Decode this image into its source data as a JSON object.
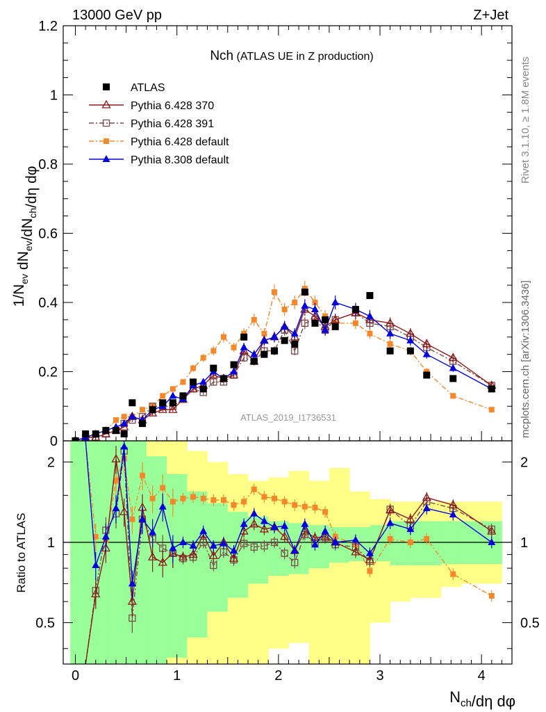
{
  "header": {
    "left": "13000 GeV pp",
    "right": "Z+Jet"
  },
  "main_title": {
    "main": "Nch",
    "sub": " (ATLAS UE in Z production)"
  },
  "side_text": {
    "top": "Rivet 3.1.10, ≥ 1.8M events",
    "bottom": "mcplots.cern.ch [arXiv:1306.3436]"
  },
  "watermark": "ATLAS_2019_I1736531",
  "ylabel_top": "1/N_ev dN_ev/dN_ch/dη dφ",
  "ylabel_bottom": "Ratio to ATLAS",
  "xlabel": "N_ch/dη dφ",
  "colors": {
    "atlas": "#000000",
    "p370": "#8b1a1a",
    "p391": "#7a4a4a",
    "p6def": "#f4882a",
    "p8def": "#0000dd",
    "band_inner": "#99ff99",
    "band_outer": "#ffff88"
  },
  "chart_data": [
    {
      "type": "line",
      "panel": "main",
      "xlim": [
        -0.12,
        4.3
      ],
      "ylim": [
        0,
        1.2
      ],
      "yticks": [
        0,
        0.2,
        0.4,
        0.6,
        0.8,
        1,
        1.2
      ],
      "ytick_labels": [
        "0",
        "0.2",
        "0.4",
        "0.6",
        "0.8",
        "1",
        "1.2"
      ],
      "legend": "top-left",
      "x": [
        0,
        0.1,
        0.2,
        0.3,
        0.4,
        0.48,
        0.56,
        0.66,
        0.76,
        0.86,
        0.96,
        1.06,
        1.16,
        1.26,
        1.36,
        1.46,
        1.56,
        1.66,
        1.76,
        1.86,
        1.96,
        2.06,
        2.16,
        2.26,
        2.36,
        2.46,
        2.56,
        2.76,
        2.9,
        3.1,
        3.3,
        3.46,
        3.72,
        4.1
      ],
      "series": [
        {
          "name": "ATLAS",
          "key": "atlas",
          "style": "data",
          "marker": "square",
          "values": [
            0.0,
            0.02,
            0.02,
            0.03,
            0.03,
            0.02,
            0.11,
            0.05,
            0.09,
            0.11,
            0.11,
            0.13,
            0.17,
            0.15,
            0.21,
            0.18,
            0.22,
            0.3,
            0.23,
            0.25,
            0.26,
            0.29,
            0.28,
            0.43,
            0.34,
            0.35,
            0.33,
            0.38,
            0.42,
            0.26,
            0.26,
            0.19,
            0.18,
            0.15
          ]
        },
        {
          "name": "Pythia 6.428 370",
          "key": "p370",
          "style": "solid",
          "marker": "open-triangle",
          "values": [
            0.0,
            0.01,
            0.01,
            0.02,
            0.03,
            0.04,
            0.07,
            0.06,
            0.08,
            0.09,
            0.09,
            0.12,
            0.15,
            0.16,
            0.19,
            0.18,
            0.19,
            0.26,
            0.23,
            0.29,
            0.3,
            0.33,
            0.3,
            0.38,
            0.36,
            0.33,
            0.35,
            0.37,
            0.35,
            0.34,
            0.31,
            0.28,
            0.24,
            0.16
          ]
        },
        {
          "name": "Pythia 6.428 391",
          "key": "p391",
          "style": "dashdot",
          "marker": "open-square",
          "values": [
            0.0,
            0.01,
            0.01,
            0.02,
            0.03,
            0.05,
            0.06,
            0.07,
            0.1,
            0.1,
            0.1,
            0.12,
            0.15,
            0.14,
            0.17,
            0.17,
            0.19,
            0.24,
            0.23,
            0.26,
            0.26,
            0.32,
            0.26,
            0.34,
            0.35,
            0.32,
            0.35,
            0.37,
            0.34,
            0.33,
            0.3,
            0.27,
            0.23,
            0.16
          ]
        },
        {
          "name": "Pythia 6.428 default",
          "key": "p6def",
          "style": "dashdot",
          "marker": "filled-square",
          "values": [
            0.0,
            0.01,
            0.02,
            0.03,
            0.06,
            0.07,
            0.07,
            0.09,
            0.1,
            0.13,
            0.15,
            0.17,
            0.21,
            0.24,
            0.26,
            0.3,
            0.27,
            0.31,
            0.35,
            0.31,
            0.43,
            0.38,
            0.4,
            0.44,
            0.4,
            0.36,
            0.34,
            0.34,
            0.31,
            0.28,
            0.26,
            0.2,
            0.13,
            0.09
          ]
        },
        {
          "name": "Pythia 8.308 default",
          "key": "p8def",
          "style": "solid",
          "marker": "filled-triangle",
          "values": [
            0.0,
            0.01,
            0.02,
            0.03,
            0.04,
            0.05,
            0.07,
            0.06,
            0.09,
            0.1,
            0.13,
            0.12,
            0.16,
            0.17,
            0.2,
            0.18,
            0.2,
            0.27,
            0.25,
            0.29,
            0.3,
            0.33,
            0.31,
            0.39,
            0.38,
            0.32,
            0.4,
            0.38,
            0.36,
            0.31,
            0.29,
            0.25,
            0.21,
            0.15
          ]
        }
      ]
    },
    {
      "type": "line",
      "panel": "ratio",
      "xlim": [
        -0.12,
        4.3
      ],
      "ylim": [
        0.35,
        2.4
      ],
      "yscale": "log",
      "yticks": [
        0.5,
        1,
        2
      ],
      "ytick_labels": [
        "0.5",
        "1",
        "2"
      ],
      "xticks": [
        0,
        1,
        2,
        3,
        4
      ],
      "xtick_labels": [
        "0",
        "1",
        "2",
        "3",
        "4"
      ],
      "x": [
        0.2,
        0.3,
        0.4,
        0.48,
        0.56,
        0.66,
        0.76,
        0.86,
        0.96,
        1.06,
        1.16,
        1.26,
        1.36,
        1.46,
        1.56,
        1.66,
        1.76,
        1.86,
        1.96,
        2.06,
        2.16,
        2.26,
        2.36,
        2.46,
        2.56,
        2.76,
        2.9,
        3.1,
        3.3,
        3.46,
        3.72,
        4.1
      ],
      "series": [
        {
          "name": "Pythia 6.428 370",
          "key": "p370",
          "values": [
            0.64,
            0.95,
            2.05,
            1.3,
            0.6,
            1.35,
            0.88,
            0.84,
            0.91,
            0.88,
            0.9,
            1.07,
            0.89,
            1.0,
            0.87,
            1.1,
            1.17,
            1.12,
            1.14,
            1.05,
            0.93,
            1.1,
            1.04,
            1.05,
            1.0,
            0.92,
            0.86,
            1.32,
            1.22,
            1.47,
            1.38,
            1.1
          ]
        },
        {
          "name": "Pythia 6.428 391",
          "key": "p391",
          "values": [
            0.66,
            1.11,
            1.28,
            2.2,
            0.52,
            1.22,
            1.03,
            0.95,
            0.91,
            0.87,
            0.88,
            1.0,
            0.82,
            0.92,
            0.86,
            0.99,
            0.96,
            0.97,
            1.0,
            0.91,
            0.84,
            1.07,
            1.0,
            1.04,
            0.98,
            0.96,
            0.85,
            1.33,
            1.15,
            1.42,
            1.34,
            1.12
          ]
        },
        {
          "name": "Pythia 6.428 default",
          "key": "p6def",
          "values": [
            1.05,
            1.02,
            1.7,
            2.06,
            1.22,
            1.78,
            1.46,
            1.6,
            1.42,
            1.46,
            1.48,
            1.46,
            1.44,
            1.44,
            1.38,
            1.42,
            1.58,
            1.48,
            1.46,
            1.42,
            1.38,
            1.36,
            1.35,
            1.3,
            1.05,
            0.98,
            0.78,
            1.03,
            1.0,
            1.03,
            0.76,
            0.63
          ]
        },
        {
          "name": "Pythia 8.308 default",
          "key": "p8def",
          "values": [
            0.82,
            1.05,
            1.34,
            2.28,
            0.7,
            1.22,
            1.09,
            1.36,
            0.95,
            1.0,
            0.97,
            1.1,
            0.97,
            0.99,
            0.93,
            1.17,
            1.28,
            1.2,
            1.14,
            1.15,
            0.93,
            1.17,
            0.98,
            1.1,
            1.0,
            1.02,
            0.91,
            1.18,
            1.12,
            1.34,
            1.27,
            1.0
          ]
        }
      ],
      "band_edges": [
        -0.05,
        0.1,
        0.3,
        0.5,
        0.7,
        0.9,
        1.1,
        1.3,
        1.5,
        1.7,
        1.9,
        2.1,
        2.3,
        2.5,
        2.7,
        2.9,
        3.1,
        3.3,
        3.6,
        3.8,
        4.2
      ],
      "band_inner_lo": [
        0.35,
        0.35,
        0.35,
        0.35,
        0.35,
        0.37,
        0.44,
        0.55,
        0.62,
        0.7,
        0.75,
        0.76,
        0.8,
        0.84,
        0.85,
        0.85,
        0.82,
        0.82,
        0.83,
        0.83
      ],
      "band_inner_hi": [
        2.4,
        2.4,
        2.4,
        2.4,
        2.1,
        1.8,
        1.55,
        1.4,
        1.3,
        1.25,
        1.2,
        1.18,
        1.16,
        1.14,
        1.14,
        1.16,
        1.2,
        1.2,
        1.2,
        1.2
      ],
      "band_outer_lo": [
        0.35,
        0.35,
        0.35,
        0.35,
        0.35,
        0.35,
        0.35,
        0.35,
        0.35,
        0.35,
        0.4,
        0.42,
        0.35,
        0.35,
        0.35,
        0.5,
        0.6,
        0.62,
        0.68,
        0.7
      ],
      "band_outer_hi": [
        2.4,
        2.4,
        2.4,
        2.4,
        2.4,
        2.4,
        2.2,
        2.0,
        1.8,
        1.7,
        1.75,
        1.85,
        1.7,
        1.9,
        1.55,
        1.45,
        1.42,
        1.42,
        1.42,
        1.42
      ]
    }
  ]
}
